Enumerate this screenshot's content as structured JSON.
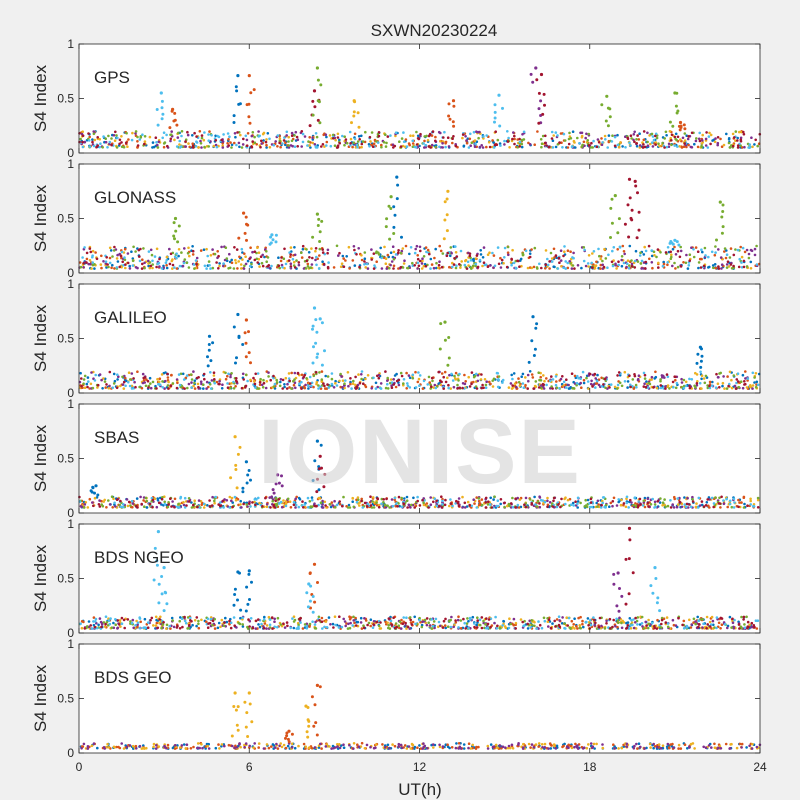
{
  "title": "SXWN20230224",
  "xlabel": "UT(h)",
  "ylabel": "S4 Index",
  "watermark": "IONISE",
  "chart_data": [
    {
      "type": "scatter",
      "panel_label": "GPS",
      "xlim": [
        0,
        24
      ],
      "ylim": [
        0,
        1
      ],
      "xticks": [
        0,
        6,
        12,
        18,
        24
      ],
      "yticks": [
        0,
        0.5,
        1
      ],
      "ylabel": "S4 Index",
      "baseline_range": [
        0.05,
        0.2
      ],
      "series_colors": [
        "#0072BD",
        "#D95319",
        "#EDB120",
        "#7E2F8E",
        "#77AC30",
        "#4DBEEE",
        "#A2142F"
      ],
      "spikes": [
        {
          "x": 2.9,
          "y": 0.55,
          "color": "#4DBEEE"
        },
        {
          "x": 3.3,
          "y": 0.4,
          "color": "#D95319"
        },
        {
          "x": 5.6,
          "y": 0.71,
          "color": "#0072BD"
        },
        {
          "x": 6.0,
          "y": 0.71,
          "color": "#D95319"
        },
        {
          "x": 8.3,
          "y": 0.57,
          "color": "#A2142F"
        },
        {
          "x": 8.4,
          "y": 0.78,
          "color": "#77AC30"
        },
        {
          "x": 9.7,
          "y": 0.48,
          "color": "#EDB120"
        },
        {
          "x": 13.2,
          "y": 0.48,
          "color": "#D95319"
        },
        {
          "x": 14.8,
          "y": 0.53,
          "color": "#4DBEEE"
        },
        {
          "x": 16.1,
          "y": 0.78,
          "color": "#7E2F8E"
        },
        {
          "x": 16.3,
          "y": 0.72,
          "color": "#A2142F"
        },
        {
          "x": 18.6,
          "y": 0.52,
          "color": "#77AC30"
        },
        {
          "x": 21.0,
          "y": 0.55,
          "color": "#77AC30"
        },
        {
          "x": 21.2,
          "y": 0.28,
          "color": "#D95319"
        }
      ]
    },
    {
      "type": "scatter",
      "panel_label": "GLONASS",
      "xlim": [
        0,
        24
      ],
      "ylim": [
        0,
        1
      ],
      "xticks": [
        0,
        6,
        12,
        18,
        24
      ],
      "yticks": [
        0,
        0.5,
        1
      ],
      "ylabel": "S4 Index",
      "baseline_range": [
        0.04,
        0.25
      ],
      "series_colors": [
        "#0072BD",
        "#D95319",
        "#EDB120",
        "#7E2F8E",
        "#77AC30",
        "#4DBEEE",
        "#A2142F"
      ],
      "spikes": [
        {
          "x": 3.4,
          "y": 0.5,
          "color": "#77AC30"
        },
        {
          "x": 5.8,
          "y": 0.55,
          "color": "#D95319"
        },
        {
          "x": 6.8,
          "y": 0.35,
          "color": "#4DBEEE"
        },
        {
          "x": 8.4,
          "y": 0.54,
          "color": "#77AC30"
        },
        {
          "x": 11.2,
          "y": 0.88,
          "color": "#0072BD"
        },
        {
          "x": 11.0,
          "y": 0.7,
          "color": "#77AC30"
        },
        {
          "x": 13.0,
          "y": 0.75,
          "color": "#EDB120"
        },
        {
          "x": 18.9,
          "y": 0.71,
          "color": "#77AC30"
        },
        {
          "x": 19.4,
          "y": 0.86,
          "color": "#A2142F"
        },
        {
          "x": 19.6,
          "y": 0.84,
          "color": "#A2142F"
        },
        {
          "x": 21.0,
          "y": 0.3,
          "color": "#4DBEEE"
        },
        {
          "x": 22.6,
          "y": 0.65,
          "color": "#77AC30"
        }
      ]
    },
    {
      "type": "scatter",
      "panel_label": "GALILEO",
      "xlim": [
        0,
        24
      ],
      "ylim": [
        0,
        1
      ],
      "xticks": [
        0,
        6,
        12,
        18,
        24
      ],
      "yticks": [
        0,
        0.5,
        1
      ],
      "ylabel": "S4 Index",
      "baseline_range": [
        0.04,
        0.2
      ],
      "series_colors": [
        "#0072BD",
        "#D95319",
        "#EDB120",
        "#7E2F8E",
        "#77AC30",
        "#4DBEEE",
        "#A2142F"
      ],
      "spikes": [
        {
          "x": 4.6,
          "y": 0.52,
          "color": "#0072BD"
        },
        {
          "x": 5.6,
          "y": 0.72,
          "color": "#0072BD"
        },
        {
          "x": 5.9,
          "y": 0.67,
          "color": "#D95319"
        },
        {
          "x": 8.3,
          "y": 0.78,
          "color": "#4DBEEE"
        },
        {
          "x": 8.5,
          "y": 0.68,
          "color": "#4DBEEE"
        },
        {
          "x": 12.9,
          "y": 0.65,
          "color": "#77AC30"
        },
        {
          "x": 16.0,
          "y": 0.7,
          "color": "#0072BD"
        },
        {
          "x": 21.9,
          "y": 0.42,
          "color": "#0072BD"
        }
      ]
    },
    {
      "type": "scatter",
      "panel_label": "SBAS",
      "xlim": [
        0,
        24
      ],
      "ylim": [
        0,
        1
      ],
      "xticks": [
        0,
        6,
        12,
        18,
        24
      ],
      "yticks": [
        0,
        0.5,
        1
      ],
      "ylabel": "S4 Index",
      "baseline_range": [
        0.05,
        0.15
      ],
      "series_colors": [
        "#0072BD",
        "#D95319",
        "#EDB120",
        "#7E2F8E",
        "#77AC30",
        "#4DBEEE",
        "#A2142F"
      ],
      "spikes": [
        {
          "x": 0.6,
          "y": 0.25,
          "color": "#0072BD"
        },
        {
          "x": 5.5,
          "y": 0.7,
          "color": "#EDB120"
        },
        {
          "x": 5.9,
          "y": 0.47,
          "color": "#0072BD"
        },
        {
          "x": 7.0,
          "y": 0.35,
          "color": "#7E2F8E"
        },
        {
          "x": 8.4,
          "y": 0.66,
          "color": "#0072BD"
        },
        {
          "x": 8.5,
          "y": 0.52,
          "color": "#A2142F"
        }
      ]
    },
    {
      "type": "scatter",
      "panel_label": "BDS NGEO",
      "xlim": [
        0,
        24
      ],
      "ylim": [
        0,
        1
      ],
      "xticks": [
        0,
        6,
        12,
        18,
        24
      ],
      "yticks": [
        0,
        0.5,
        1
      ],
      "ylabel": "S4 Index",
      "baseline_range": [
        0.04,
        0.15
      ],
      "series_colors": [
        "#0072BD",
        "#D95319",
        "#EDB120",
        "#7E2F8E",
        "#77AC30",
        "#4DBEEE",
        "#A2142F"
      ],
      "spikes": [
        {
          "x": 2.8,
          "y": 0.93,
          "color": "#4DBEEE"
        },
        {
          "x": 3.0,
          "y": 0.6,
          "color": "#4DBEEE"
        },
        {
          "x": 5.6,
          "y": 0.56,
          "color": "#0072BD"
        },
        {
          "x": 6.0,
          "y": 0.57,
          "color": "#0072BD"
        },
        {
          "x": 8.3,
          "y": 0.63,
          "color": "#D95319"
        },
        {
          "x": 8.1,
          "y": 0.45,
          "color": "#4DBEEE"
        },
        {
          "x": 19.0,
          "y": 0.55,
          "color": "#7E2F8E"
        },
        {
          "x": 19.4,
          "y": 0.96,
          "color": "#A2142F"
        },
        {
          "x": 20.3,
          "y": 0.6,
          "color": "#4DBEEE"
        }
      ]
    },
    {
      "type": "scatter",
      "panel_label": "BDS GEO",
      "xlim": [
        0,
        24
      ],
      "ylim": [
        0,
        1
      ],
      "xticks": [
        0,
        6,
        12,
        18,
        24
      ],
      "yticks": [
        0,
        0.5,
        1
      ],
      "ylabel": "S4 Index",
      "baseline_range": [
        0.04,
        0.09
      ],
      "series_colors": [
        "#0072BD",
        "#D95319",
        "#EDB120",
        "#7E2F8E"
      ],
      "spikes": [
        {
          "x": 5.5,
          "y": 0.55,
          "color": "#EDB120"
        },
        {
          "x": 6.0,
          "y": 0.55,
          "color": "#EDB120"
        },
        {
          "x": 7.4,
          "y": 0.2,
          "color": "#D95319"
        },
        {
          "x": 8.0,
          "y": 0.43,
          "color": "#EDB120"
        },
        {
          "x": 8.4,
          "y": 0.62,
          "color": "#D95319"
        }
      ]
    }
  ]
}
